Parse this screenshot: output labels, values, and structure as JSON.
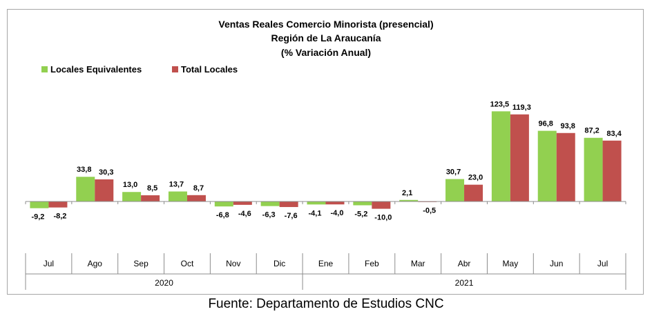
{
  "chart_data": {
    "type": "bar",
    "title": "Ventas Reales Comercio Minorista (presencial)",
    "subtitle": "Región de La Araucanía",
    "subtitle2": "(% Variación Anual)",
    "categories": [
      "Jul",
      "Ago",
      "Sep",
      "Oct",
      "Nov",
      "Dic",
      "Ene",
      "Feb",
      "Mar",
      "Abr",
      "May",
      "Jun",
      "Jul"
    ],
    "groups": [
      {
        "label": "2020",
        "count": 6
      },
      {
        "label": "2021",
        "count": 7
      }
    ],
    "series": [
      {
        "name": "Locales Equivalentes",
        "color": "#92d050",
        "values": [
          -9.2,
          33.8,
          13.0,
          13.7,
          -6.8,
          -6.3,
          -4.1,
          -5.2,
          2.1,
          30.7,
          123.5,
          96.8,
          87.2
        ],
        "labels": [
          "-9,2",
          "33,8",
          "13,0",
          "13,7",
          "-6,8",
          "-6,3",
          "-4,1",
          "-5,2",
          "2,1",
          "30,7",
          "123,5",
          "96,8",
          "87,2"
        ]
      },
      {
        "name": "Total Locales",
        "color": "#c0504d",
        "values": [
          -8.2,
          30.3,
          8.5,
          8.7,
          -4.6,
          -7.6,
          -4.0,
          -10.0,
          -0.5,
          23.0,
          119.3,
          93.8,
          83.4
        ],
        "labels": [
          "-8,2",
          "30,3",
          "8,5",
          "8,7",
          "-4,6",
          "-7,6",
          "-4,0",
          "-10,0",
          "-0,5",
          "23,0",
          "119,3",
          "93,8",
          "83,4"
        ]
      }
    ],
    "ylim": [
      -12,
      130
    ],
    "legend_position": "top-left",
    "grid": false
  },
  "source": "Fuente: Departamento de Estudios CNC"
}
